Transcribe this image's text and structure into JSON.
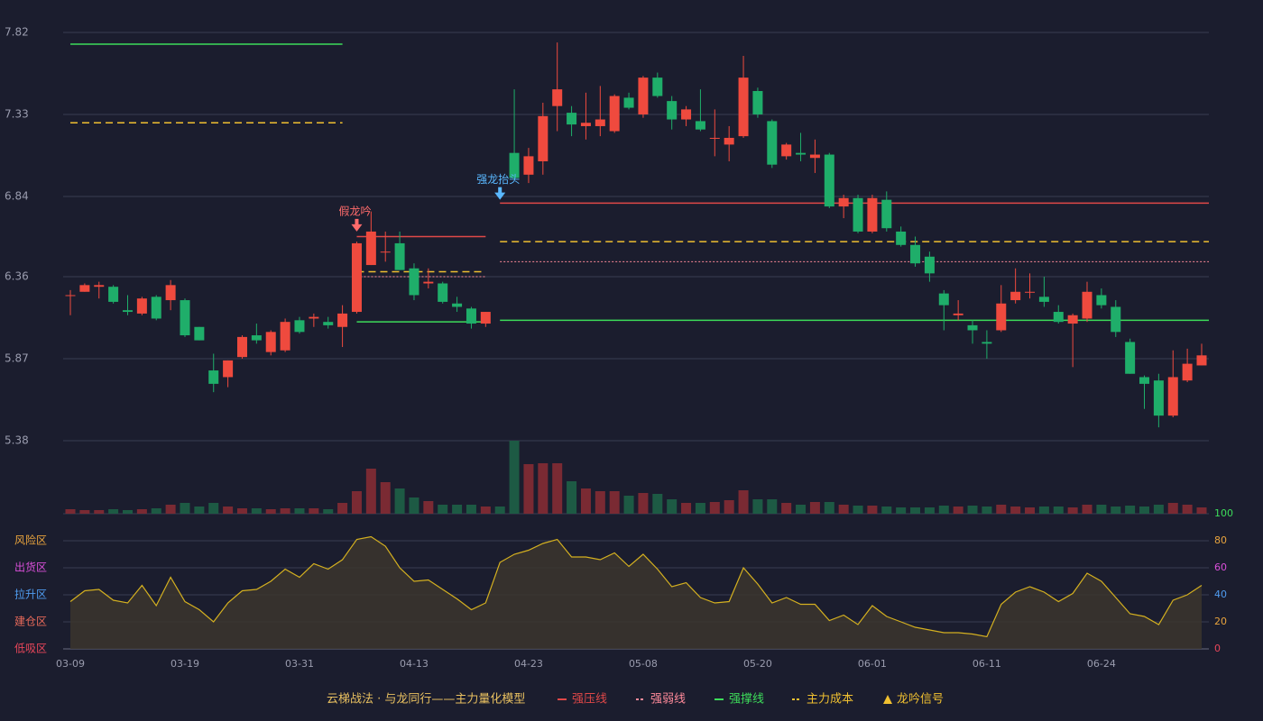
{
  "chart_data": {
    "type": "candlestick",
    "categories": [
      "03-09",
      null,
      null,
      null,
      null,
      null,
      null,
      null,
      "03-19",
      null,
      null,
      null,
      null,
      null,
      null,
      null,
      "03-31",
      null,
      null,
      null,
      null,
      null,
      null,
      null,
      "04-13",
      null,
      null,
      null,
      null,
      null,
      null,
      null,
      "04-23",
      null,
      null,
      null,
      null,
      null,
      null,
      null,
      "05-08",
      null,
      null,
      null,
      null,
      null,
      null,
      null,
      "05-20",
      null,
      null,
      null,
      null,
      null,
      null,
      null,
      "06-01",
      null,
      null,
      null,
      null,
      null,
      null,
      null,
      "06-11",
      null,
      null,
      null,
      null,
      null,
      null,
      null,
      "06-24",
      null,
      null,
      null,
      null,
      null,
      null,
      null
    ],
    "open": [
      6.25,
      6.27,
      6.3,
      6.3,
      6.16,
      6.14,
      6.24,
      6.22,
      6.22,
      6.06,
      5.8,
      5.76,
      5.88,
      6.01,
      5.91,
      5.92,
      6.1,
      6.11,
      6.09,
      6.06,
      6.15,
      6.43,
      6.51,
      6.56,
      6.41,
      6.32,
      6.32,
      6.2,
      6.17,
      6.08,
      null,
      7.1,
      6.97,
      7.05,
      7.38,
      7.34,
      7.26,
      7.26,
      7.23,
      7.43,
      7.33,
      7.55,
      7.41,
      7.3,
      7.29,
      7.19,
      7.15,
      7.2,
      7.47,
      7.29,
      7.08,
      7.1,
      7.07,
      7.09,
      6.78,
      6.83,
      6.63,
      6.82,
      6.63,
      6.55,
      6.48,
      6.26,
      6.13,
      6.07,
      5.97,
      6.04,
      6.22,
      6.27,
      6.24,
      6.15,
      6.08,
      6.11,
      6.25,
      6.18,
      5.97,
      5.76,
      5.74,
      5.53,
      5.74,
      5.83
    ],
    "close": [
      6.25,
      6.31,
      6.31,
      6.21,
      6.15,
      6.23,
      6.11,
      6.31,
      6.01,
      5.98,
      5.72,
      5.86,
      6.0,
      5.98,
      6.03,
      6.09,
      6.03,
      6.12,
      6.07,
      6.14,
      6.56,
      6.63,
      6.51,
      6.4,
      6.25,
      6.33,
      6.21,
      6.18,
      6.08,
      6.15,
      null,
      6.95,
      7.08,
      7.32,
      7.48,
      7.27,
      7.28,
      7.3,
      7.44,
      7.37,
      7.55,
      7.44,
      7.3,
      7.36,
      7.24,
      7.19,
      7.19,
      7.55,
      7.33,
      7.03,
      7.15,
      7.09,
      7.09,
      6.78,
      6.83,
      6.63,
      6.83,
      6.65,
      6.55,
      6.44,
      6.38,
      6.19,
      6.14,
      6.04,
      5.96,
      6.2,
      6.27,
      6.27,
      6.21,
      6.09,
      6.13,
      6.27,
      6.19,
      6.03,
      5.78,
      5.72,
      5.53,
      5.76,
      5.84,
      5.89
    ],
    "high": [
      6.28,
      6.32,
      6.33,
      6.31,
      6.25,
      6.24,
      6.25,
      6.34,
      6.23,
      6.06,
      5.9,
      5.86,
      6.01,
      6.08,
      6.04,
      6.11,
      6.12,
      6.14,
      6.12,
      6.19,
      6.57,
      6.75,
      6.63,
      6.63,
      6.44,
      6.41,
      6.33,
      6.24,
      6.18,
      6.15,
      null,
      7.48,
      7.13,
      7.4,
      7.76,
      7.38,
      7.46,
      7.5,
      7.45,
      7.46,
      7.56,
      7.58,
      7.44,
      7.38,
      7.48,
      7.36,
      7.26,
      7.68,
      7.49,
      7.3,
      7.16,
      7.22,
      7.18,
      7.1,
      6.85,
      6.85,
      6.85,
      6.87,
      6.66,
      6.6,
      6.51,
      6.28,
      6.22,
      6.1,
      6.04,
      6.31,
      6.41,
      6.38,
      6.36,
      6.19,
      6.14,
      6.33,
      6.29,
      6.22,
      5.99,
      5.77,
      5.78,
      5.92,
      5.93,
      5.96
    ],
    "low": [
      6.13,
      6.27,
      6.23,
      6.2,
      6.13,
      6.13,
      6.1,
      6.16,
      6.0,
      5.98,
      5.67,
      5.7,
      5.87,
      5.96,
      5.89,
      5.91,
      6.02,
      6.06,
      6.05,
      5.94,
      6.14,
      6.43,
      6.45,
      6.4,
      6.22,
      6.29,
      6.2,
      6.15,
      6.05,
      6.06,
      null,
      6.94,
      6.92,
      6.97,
      7.23,
      7.2,
      7.18,
      7.2,
      7.22,
      7.36,
      7.31,
      7.43,
      7.24,
      7.26,
      7.23,
      7.08,
      7.05,
      7.19,
      7.31,
      7.01,
      7.06,
      7.05,
      6.98,
      6.77,
      6.71,
      6.62,
      6.62,
      6.63,
      6.54,
      6.42,
      6.33,
      6.04,
      6.1,
      5.96,
      5.87,
      6.03,
      6.2,
      6.23,
      6.18,
      6.08,
      5.82,
      6.09,
      6.17,
      6.0,
      5.78,
      5.57,
      5.46,
      5.52,
      5.73,
      5.83
    ],
    "up_color": "#ef4a3e",
    "down_color": "#1fae6a",
    "ylim": [
      5.38,
      7.82
    ],
    "yticks": [
      5.38,
      5.87,
      6.36,
      6.84,
      7.33,
      7.82
    ],
    "grid": true,
    "volume": {
      "values": [
        5,
        4,
        4,
        5,
        4,
        5,
        6,
        10,
        12,
        8,
        12,
        8,
        6,
        6,
        5,
        6,
        6,
        6,
        5,
        12,
        25,
        50,
        35,
        28,
        18,
        14,
        10,
        10,
        10,
        8,
        8,
        81,
        55,
        56,
        56,
        36,
        28,
        25,
        25,
        20,
        23,
        22,
        16,
        12,
        12,
        13,
        15,
        26,
        16,
        16,
        12,
        10,
        13,
        13,
        10,
        9,
        9,
        8,
        7,
        7,
        7,
        9,
        8,
        9,
        8,
        10,
        8,
        7,
        8,
        8,
        7,
        10,
        10,
        8,
        9,
        8,
        10,
        12,
        10,
        7
      ],
      "ylim": [
        0,
        81
      ],
      "up_color": "#7a2a33",
      "down_color": "#1d5a44"
    },
    "oscillator": {
      "values": [
        35,
        43,
        44,
        36,
        34,
        47,
        32,
        53,
        35,
        29,
        20,
        34,
        43,
        44,
        50,
        59,
        53,
        63,
        59,
        66,
        81,
        83,
        76,
        60,
        50,
        51,
        44,
        37,
        29,
        34,
        64,
        70,
        73,
        78,
        81,
        68,
        68,
        66,
        71,
        61,
        70,
        59,
        46,
        49,
        38,
        34,
        35,
        60,
        48,
        34,
        38,
        33,
        33,
        21,
        25,
        18,
        32,
        24,
        20,
        16,
        14,
        12,
        12,
        11,
        9,
        33,
        42,
        46,
        42,
        35,
        41,
        56,
        50,
        38,
        26,
        24,
        18,
        36,
        40,
        47
      ],
      "ylim": [
        0,
        100
      ],
      "yticks": [
        0,
        20,
        40,
        60,
        80,
        100
      ],
      "ytick_colors": [
        "#e8465a",
        "#e8a33d",
        "#4f9cf0",
        "#d94fd9",
        "#e8a33d",
        "#3ddc5a"
      ],
      "color": "#d4b020",
      "zones": [
        {
          "label": "风险区",
          "value": 80,
          "color": "#e8a33d"
        },
        {
          "label": "出货区",
          "value": 60,
          "color": "#d94fd9"
        },
        {
          "label": "拉升区",
          "value": 40,
          "color": "#4f9cf0"
        },
        {
          "label": "建仓区",
          "value": 20,
          "color": "#e86a5a"
        },
        {
          "label": "低吸区",
          "value": 0,
          "color": "#e8465a"
        }
      ]
    },
    "levels": [
      {
        "name": "强压线",
        "color": "#e04848",
        "style": "solid",
        "segments": [
          {
            "start": 20,
            "end": 29,
            "value": 6.6
          },
          {
            "start": 30,
            "end": 79,
            "value": 6.8
          }
        ]
      },
      {
        "name": "强弱线",
        "color": "#ff8a9a",
        "style": "dotted",
        "segments": [
          {
            "start": 20,
            "end": 29,
            "value": 6.36
          },
          {
            "start": 30,
            "end": 79,
            "value": 6.45
          }
        ]
      },
      {
        "name": "强撑线",
        "color": "#3ddc5a",
        "style": "solid",
        "segments": [
          {
            "start": 0,
            "end": 19,
            "value": 7.75
          },
          {
            "start": 20,
            "end": 29,
            "value": 6.09
          },
          {
            "start": 30,
            "end": 79,
            "value": 6.1
          }
        ]
      },
      {
        "name": "主力成本",
        "color": "#f0c030",
        "style": "dashed",
        "segments": [
          {
            "start": 0,
            "end": 19,
            "value": 7.28
          },
          {
            "start": 20,
            "end": 29,
            "value": 6.39
          },
          {
            "start": 30,
            "end": 79,
            "value": 6.57
          }
        ]
      }
    ],
    "signals": [
      {
        "text": "假龙吟",
        "index": 20,
        "value": 6.63,
        "color": "#ff6b6b"
      },
      {
        "text": "强龙抬头",
        "index": 30,
        "value": 6.82,
        "color": "#5ab8ff"
      }
    ],
    "signal_legend": {
      "name": "龙吟信号",
      "color": "#f0c030"
    },
    "footer": "云梯战法 · 与龙同行——主力量化模型"
  }
}
